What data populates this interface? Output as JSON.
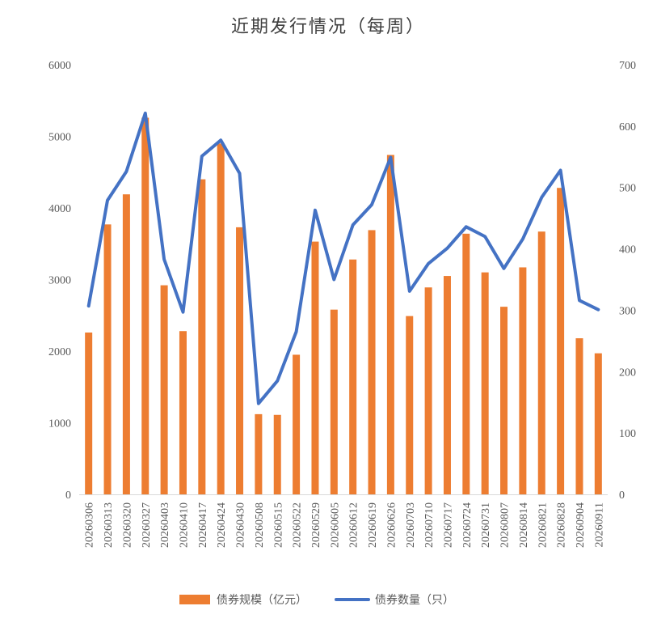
{
  "chart_data": {
    "type": "bar",
    "title": "近期发行情况（每周）",
    "categories": [
      "20260306",
      "20260313",
      "20260320",
      "20260327",
      "20260403",
      "20260410",
      "20260417",
      "20260424",
      "20260430",
      "20260508",
      "20260515",
      "20260522",
      "20260529",
      "20260605",
      "20260612",
      "20260619",
      "20260626",
      "20260703",
      "20260710",
      "20260717",
      "20260724",
      "20260731",
      "20260807",
      "20260814",
      "20260821",
      "20260828",
      "20260904",
      "20260911"
    ],
    "series": [
      {
        "name": "债券规模（亿元）",
        "type": "bar",
        "axis": "left",
        "color": "#ED7D31",
        "values": [
          2260,
          3770,
          4190,
          5260,
          2920,
          2280,
          4400,
          4900,
          3730,
          1120,
          1110,
          1950,
          3530,
          2580,
          3280,
          3690,
          4740,
          2490,
          2890,
          3050,
          3640,
          3100,
          2620,
          3170,
          3670,
          4280,
          2180,
          1970
        ]
      },
      {
        "name": "债券数量（只）",
        "type": "line",
        "axis": "right",
        "color": "#4472C4",
        "values": [
          307,
          479,
          526,
          621,
          383,
          297,
          551,
          577,
          523,
          148,
          185,
          265,
          463,
          350,
          439,
          472,
          549,
          331,
          376,
          401,
          436,
          420,
          368,
          416,
          484,
          528,
          316,
          301
        ]
      }
    ],
    "y_left": {
      "min": 0,
      "max": 6000,
      "step": 1000,
      "ticks": [
        "0",
        "1000",
        "2000",
        "3000",
        "4000",
        "5000",
        "6000"
      ]
    },
    "y_right": {
      "min": 0,
      "max": 700,
      "step": 100,
      "ticks": [
        "0",
        "100",
        "200",
        "300",
        "400",
        "500",
        "600",
        "700"
      ]
    },
    "grid": false,
    "legend_position": "bottom"
  }
}
